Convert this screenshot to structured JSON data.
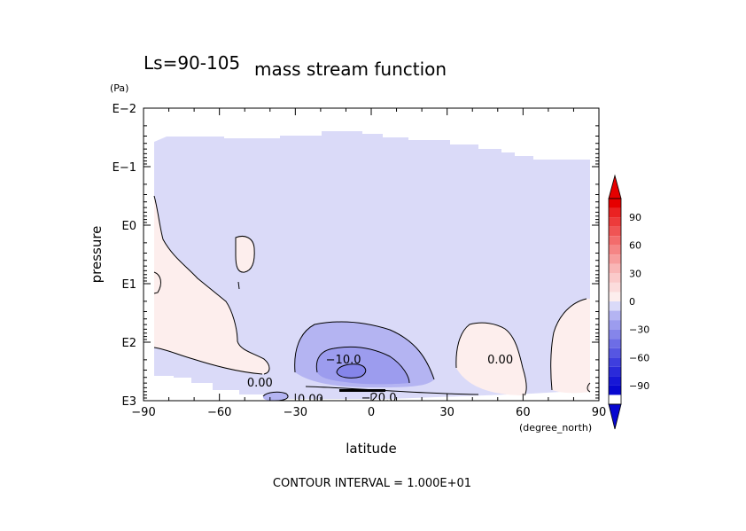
{
  "chart_data": {
    "type": "contour",
    "title": "mass stream function",
    "title_prefix": "Ls=90-105",
    "xlabel": "latitude",
    "x_units": "(degree_north)",
    "ylabel": "pressure",
    "y_units": "(Pa)",
    "xlim": [
      -90,
      90
    ],
    "x_ticks": [
      -90,
      -60,
      -30,
      0,
      30,
      60,
      90
    ],
    "x_tick_labels": [
      "−90",
      "−60",
      "−30",
      "0",
      "30",
      "60",
      "90"
    ],
    "y_scale": "log (pressure, inverted)",
    "y_ticks": [
      0.01,
      0.1,
      1,
      10,
      100,
      1000
    ],
    "y_tick_labels": [
      "E−2",
      "E−1",
      "E0",
      "E1",
      "E2",
      "E3"
    ],
    "footer": "CONTOUR INTERVAL = 1.000E+01",
    "contour_labels": [
      {
        "text": "−10.0",
        "lat": -11,
        "p": 200
      },
      {
        "text": "−20.0",
        "lat": 3,
        "p": 900
      },
      {
        "text": "0.00",
        "lat": -24,
        "p": 950
      },
      {
        "text": "0.00",
        "lat": -44,
        "p": 500
      },
      {
        "text": "0.00",
        "lat": 51,
        "p": 200
      }
    ],
    "colorbar": {
      "tick_values": [
        90,
        60,
        30,
        0,
        -30,
        -60,
        -90
      ],
      "tick_labels": [
        "90",
        "60",
        "30",
        "0",
        "−30",
        "−60",
        "−90"
      ],
      "levels": [
        {
          "lo": 100,
          "hi": 110,
          "color": "#e60000"
        },
        {
          "lo": 90,
          "hi": 100,
          "color": "#ea2222"
        },
        {
          "lo": 80,
          "hi": 90,
          "color": "#ed3b3b"
        },
        {
          "lo": 70,
          "hi": 80,
          "color": "#f05454"
        },
        {
          "lo": 60,
          "hi": 70,
          "color": "#f36c6c"
        },
        {
          "lo": 50,
          "hi": 60,
          "color": "#f58585"
        },
        {
          "lo": 40,
          "hi": 50,
          "color": "#f79d9d"
        },
        {
          "lo": 30,
          "hi": 40,
          "color": "#f9b6b6"
        },
        {
          "lo": 20,
          "hi": 30,
          "color": "#fbcaca"
        },
        {
          "lo": 10,
          "hi": 20,
          "color": "#fcdcdc"
        },
        {
          "lo": 0,
          "hi": 10,
          "color": "#fdeeed"
        },
        {
          "lo": -10,
          "hi": 0,
          "color": "#dadaf8"
        },
        {
          "lo": -20,
          "hi": -10,
          "color": "#b4b4f2"
        },
        {
          "lo": -30,
          "hi": -20,
          "color": "#9c9cee"
        },
        {
          "lo": -40,
          "hi": -30,
          "color": "#8585ea"
        },
        {
          "lo": -50,
          "hi": -40,
          "color": "#6d6de6"
        },
        {
          "lo": -60,
          "hi": -50,
          "color": "#5656e2"
        },
        {
          "lo": -70,
          "hi": -60,
          "color": "#3e3ede"
        },
        {
          "lo": -80,
          "hi": -70,
          "color": "#2a2ada"
        },
        {
          "lo": -90,
          "hi": -80,
          "color": "#1717d6"
        },
        {
          "lo": -100,
          "hi": -90,
          "color": "#0808d0"
        }
      ]
    },
    "colors": {
      "negative_fill": "#dadaf8",
      "positive_fill": "#fdeeed",
      "neg_level_2": "#b4b4f2",
      "neg_level_3": "#9c9cee",
      "contour_line": "#000000"
    }
  }
}
